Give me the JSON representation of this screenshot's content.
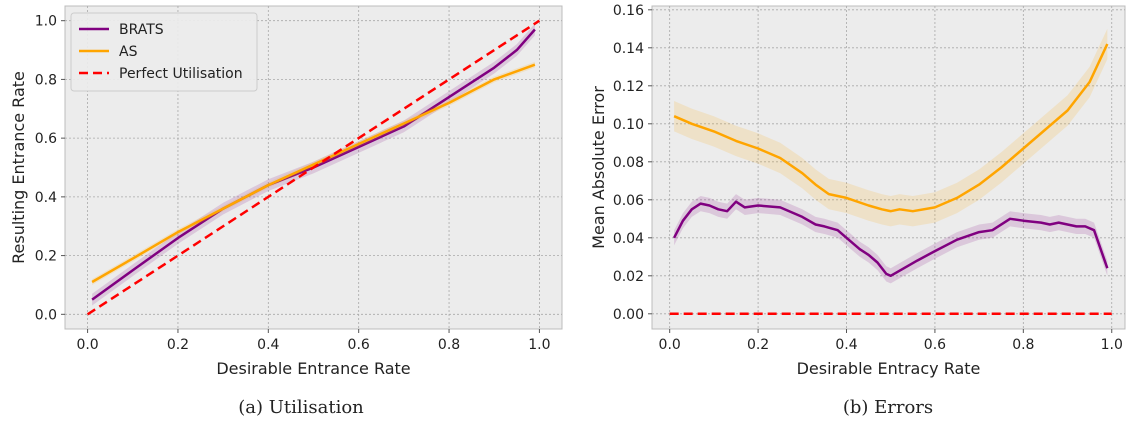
{
  "chart_data": [
    {
      "type": "line",
      "caption": "(a) Utilisation",
      "xlabel": "Desirable Entrance Rate",
      "ylabel": "Resulting Entrance Rate",
      "xlim": [
        -0.05,
        1.05
      ],
      "ylim": [
        -0.05,
        1.05
      ],
      "xticks": [
        "0.0",
        "0.2",
        "0.4",
        "0.6",
        "0.8",
        "1.0"
      ],
      "yticks": [
        "0.0",
        "0.2",
        "0.4",
        "0.6",
        "0.8",
        "1.0"
      ],
      "grid": true,
      "legend": "top-left",
      "series": [
        {
          "name": "BRATS",
          "color": "#800080",
          "style": "solid",
          "band": 0.02,
          "x": [
            0.01,
            0.1,
            0.2,
            0.3,
            0.4,
            0.5,
            0.6,
            0.7,
            0.8,
            0.9,
            0.95,
            0.99
          ],
          "y": [
            0.05,
            0.15,
            0.26,
            0.36,
            0.44,
            0.5,
            0.57,
            0.64,
            0.74,
            0.84,
            0.9,
            0.97
          ]
        },
        {
          "name": "AS",
          "color": "#ffa500",
          "style": "solid",
          "band": 0.01,
          "x": [
            0.01,
            0.1,
            0.2,
            0.3,
            0.4,
            0.5,
            0.6,
            0.7,
            0.8,
            0.9,
            0.99
          ],
          "y": [
            0.11,
            0.19,
            0.28,
            0.36,
            0.44,
            0.51,
            0.58,
            0.65,
            0.72,
            0.8,
            0.85
          ]
        },
        {
          "name": "Perfect Utilisation",
          "color": "#ff0000",
          "style": "dashed",
          "x": [
            0.0,
            1.0
          ],
          "y": [
            0.0,
            1.0
          ]
        }
      ]
    },
    {
      "type": "line",
      "caption": "(b) Errors",
      "xlabel": "Desirable Entracy Rate",
      "ylabel": "Mean Absolute Error",
      "xlim": [
        -0.04,
        1.03
      ],
      "ylim": [
        -0.008,
        0.162
      ],
      "xticks": [
        "0.0",
        "0.2",
        "0.4",
        "0.6",
        "0.8",
        "1.0"
      ],
      "yticks": [
        "0.00",
        "0.02",
        "0.04",
        "0.06",
        "0.08",
        "0.10",
        "0.12",
        "0.14",
        "0.16"
      ],
      "grid": true,
      "series": [
        {
          "color": "#800080",
          "style": "solid",
          "band": 0.004,
          "x": [
            0.01,
            0.03,
            0.05,
            0.07,
            0.09,
            0.11,
            0.13,
            0.15,
            0.17,
            0.2,
            0.25,
            0.3,
            0.33,
            0.35,
            0.38,
            0.4,
            0.43,
            0.45,
            0.47,
            0.49,
            0.5,
            0.53,
            0.56,
            0.6,
            0.65,
            0.7,
            0.73,
            0.77,
            0.8,
            0.84,
            0.86,
            0.88,
            0.9,
            0.92,
            0.94,
            0.96,
            0.99
          ],
          "y": [
            0.04,
            0.049,
            0.055,
            0.058,
            0.057,
            0.055,
            0.054,
            0.059,
            0.056,
            0.057,
            0.056,
            0.051,
            0.047,
            0.046,
            0.044,
            0.04,
            0.034,
            0.031,
            0.027,
            0.021,
            0.02,
            0.024,
            0.028,
            0.033,
            0.039,
            0.043,
            0.044,
            0.05,
            0.049,
            0.048,
            0.047,
            0.048,
            0.047,
            0.046,
            0.046,
            0.044,
            0.024
          ]
        },
        {
          "color": "#ffa500",
          "style": "solid",
          "band": 0.008,
          "x": [
            0.01,
            0.05,
            0.1,
            0.15,
            0.2,
            0.25,
            0.3,
            0.33,
            0.36,
            0.4,
            0.45,
            0.48,
            0.5,
            0.52,
            0.55,
            0.6,
            0.65,
            0.7,
            0.75,
            0.8,
            0.85,
            0.9,
            0.95,
            0.99
          ],
          "y": [
            0.104,
            0.1,
            0.096,
            0.091,
            0.087,
            0.082,
            0.074,
            0.068,
            0.063,
            0.061,
            0.057,
            0.055,
            0.054,
            0.055,
            0.054,
            0.056,
            0.061,
            0.068,
            0.077,
            0.087,
            0.097,
            0.107,
            0.122,
            0.142
          ]
        },
        {
          "color": "#ff0000",
          "style": "dashed",
          "x": [
            0.0,
            1.0
          ],
          "y": [
            0.0,
            0.0
          ]
        }
      ]
    }
  ]
}
